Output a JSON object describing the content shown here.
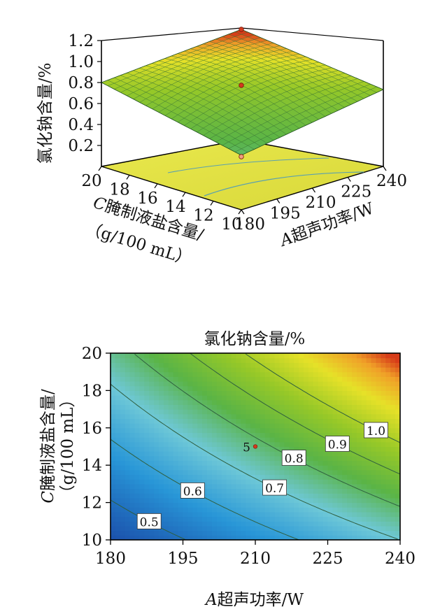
{
  "chart_data": [
    {
      "type": "surface",
      "zlabel": "氯化钠含量/%",
      "xlabel": {
        "italic": "A",
        "text": "超声功率/W"
      },
      "ylabel": {
        "italic": "C",
        "line1": "腌制液盐含量/",
        "line2": "（g/100 mL）"
      },
      "x_ticks": [
        "180",
        "195",
        "210",
        "225",
        "240"
      ],
      "y_ticks": [
        "10",
        "12",
        "14",
        "16",
        "18",
        "20"
      ],
      "z_ticks": [
        "0.2",
        "0.4",
        "0.6",
        "0.8",
        "1.0",
        "1.2"
      ],
      "x_range": [
        180,
        240
      ],
      "y_range": [
        10,
        20
      ],
      "z_range": [
        0,
        1.2
      ],
      "corners": [
        {
          "x": 180,
          "y": 10,
          "z": 0.45
        },
        {
          "x": 240,
          "y": 10,
          "z": 0.72
        },
        {
          "x": 180,
          "y": 20,
          "z": 0.78
        },
        {
          "x": 240,
          "y": 20,
          "z": 1.2
        }
      ],
      "design_points": [
        {
          "x": 240,
          "y": 20,
          "z": 1.2
        },
        {
          "x": 210,
          "y": 15,
          "z": 0.76
        },
        {
          "x": 180,
          "y": 10,
          "z": 0.45
        }
      ]
    },
    {
      "type": "contour",
      "title": "氯化钠含量/%",
      "xlabel": {
        "italic": "A",
        "text": "超声功率/W"
      },
      "ylabel": {
        "italic": "C",
        "line1": "腌制液盐含量/",
        "line2": "（g/100 mL）"
      },
      "x_ticks": [
        "180",
        "195",
        "210",
        "225",
        "240"
      ],
      "y_ticks": [
        "10",
        "12",
        "14",
        "16",
        "18",
        "20"
      ],
      "xlim": [
        180,
        240
      ],
      "ylim": [
        10,
        20
      ],
      "contour_levels": [
        "0.5",
        "0.6",
        "0.7",
        "0.8",
        "0.9",
        "1.0"
      ],
      "center_point": {
        "x": 210,
        "y": 15,
        "label": "5"
      }
    }
  ]
}
